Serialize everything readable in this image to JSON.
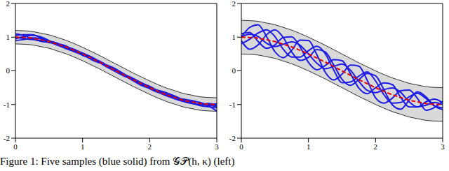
{
  "caption": "Figure 1: Five samples (blue solid) from 𝒢𝒫(h, κ) (left)",
  "chart_data": [
    {
      "type": "line",
      "x": [
        0,
        0.125,
        0.25,
        0.375,
        0.5,
        0.625,
        0.75,
        0.875,
        1,
        1.125,
        1.25,
        1.375,
        1.5,
        1.625,
        1.75,
        1.875,
        2,
        2.125,
        2.25,
        2.375,
        2.5,
        2.625,
        2.75,
        2.875,
        3
      ],
      "xlim": [
        0,
        3
      ],
      "xticks": [
        0,
        1,
        2,
        3
      ],
      "ylim": [
        -2,
        2
      ],
      "yticks": [
        -2,
        -1,
        0,
        1,
        2
      ],
      "series": [
        {
          "type": "area",
          "color": "#d9d9d9",
          "lower": [
            0.8,
            0.79,
            0.77,
            0.72,
            0.67,
            0.59,
            0.51,
            0.41,
            0.3,
            0.18,
            0.06,
            -0.07,
            -0.2,
            -0.33,
            -0.46,
            -0.58,
            -0.7,
            -0.81,
            -0.91,
            -0.99,
            -1.07,
            -1.12,
            -1.17,
            -1.19,
            -1.2
          ],
          "upper": [
            1.2,
            1.19,
            1.17,
            1.12,
            1.07,
            0.99,
            0.91,
            0.81,
            0.7,
            0.58,
            0.46,
            0.33,
            0.2,
            0.07,
            -0.06,
            -0.18,
            -0.3,
            -0.41,
            -0.51,
            -0.59,
            -0.67,
            -0.72,
            -0.77,
            -0.79,
            -0.8
          ]
        },
        {
          "color": "#1a1ae6",
          "line_style": "solid",
          "values": [
            1.05,
            1.07,
            1.07,
            0.98,
            0.87,
            0.76,
            0.71,
            0.64,
            0.5,
            0.34,
            0.24,
            0.16,
            0.05,
            -0.11,
            -0.29,
            -0.43,
            -0.52,
            -0.58,
            -0.65,
            -0.75,
            -0.87,
            -0.96,
            -1.03,
            -1.07,
            -1.1
          ]
        },
        {
          "color": "#1a1ae6",
          "line_style": "solid",
          "values": [
            0.95,
            1.02,
            1.05,
            1.01,
            0.9,
            0.77,
            0.66,
            0.58,
            0.52,
            0.42,
            0.28,
            0.11,
            -0.03,
            -0.16,
            -0.24,
            -0.35,
            -0.48,
            -0.63,
            -0.74,
            -0.8,
            -0.84,
            -0.88,
            -0.95,
            -1.02,
            -1.05
          ]
        },
        {
          "color": "#1a1ae6",
          "line_style": "solid",
          "values": [
            0.9,
            0.93,
            0.98,
            0.95,
            0.85,
            0.81,
            0.74,
            0.6,
            0.46,
            0.37,
            0.29,
            0.15,
            0.01,
            -0.15,
            -0.28,
            -0.36,
            -0.46,
            -0.6,
            -0.73,
            -0.83,
            -0.9,
            -0.9,
            -0.94,
            -1.0,
            -0.98
          ]
        },
        {
          "color": "#1a1ae6",
          "line_style": "solid",
          "values": [
            1.1,
            1.05,
            0.95,
            0.88,
            0.84,
            0.8,
            0.72,
            0.62,
            0.53,
            0.4,
            0.25,
            0.1,
            -0.02,
            -0.12,
            -0.22,
            -0.37,
            -0.53,
            -0.64,
            -0.7,
            -0.76,
            -0.86,
            -0.95,
            -1.0,
            -0.97,
            -1.02
          ]
        },
        {
          "color": "#1a1ae6",
          "line_style": "solid",
          "values": [
            1.0,
            0.96,
            0.93,
            0.9,
            0.88,
            0.82,
            0.69,
            0.57,
            0.48,
            0.39,
            0.27,
            0.12,
            0.02,
            -0.1,
            -0.25,
            -0.4,
            -0.51,
            -0.59,
            -0.69,
            -0.81,
            -0.91,
            -0.97,
            -0.99,
            -1.04,
            -1.2
          ]
        },
        {
          "color": "#e60000",
          "line_style": "dashed",
          "values": [
            1,
            0.99,
            0.97,
            0.92,
            0.87,
            0.79,
            0.71,
            0.61,
            0.5,
            0.38,
            0.26,
            0.13,
            0,
            -0.13,
            -0.26,
            -0.38,
            -0.5,
            -0.61,
            -0.71,
            -0.79,
            -0.87,
            -0.92,
            -0.97,
            -0.99,
            -1
          ]
        }
      ]
    },
    {
      "type": "line",
      "x": [
        0,
        0.125,
        0.25,
        0.375,
        0.5,
        0.625,
        0.75,
        0.875,
        1,
        1.125,
        1.25,
        1.375,
        1.5,
        1.625,
        1.75,
        1.875,
        2,
        2.125,
        2.25,
        2.375,
        2.5,
        2.625,
        2.75,
        2.875,
        3
      ],
      "xlim": [
        0,
        3
      ],
      "xticks": [
        0,
        1,
        2,
        3
      ],
      "ylim": [
        -2,
        2
      ],
      "yticks": [
        -2,
        -1,
        0,
        1,
        2
      ],
      "series": [
        {
          "type": "area",
          "color": "#d9d9d9",
          "lower": [
            0.5,
            0.49,
            0.47,
            0.42,
            0.37,
            0.29,
            0.21,
            0.11,
            0,
            -0.12,
            -0.24,
            -0.37,
            -0.5,
            -0.63,
            -0.76,
            -0.88,
            -1.0,
            -1.11,
            -1.21,
            -1.29,
            -1.37,
            -1.42,
            -1.47,
            -1.49,
            -1.5
          ],
          "upper": [
            1.5,
            1.49,
            1.47,
            1.42,
            1.37,
            1.29,
            1.21,
            1.11,
            1.0,
            0.88,
            0.76,
            0.63,
            0.5,
            0.37,
            0.24,
            0.12,
            0,
            -0.11,
            -0.21,
            -0.29,
            -0.37,
            -0.42,
            -0.47,
            -0.49,
            -0.5
          ]
        },
        {
          "color": "#1a1ae6",
          "line_style": "solid",
          "values": [
            1.0,
            1.29,
            1.37,
            1.02,
            0.57,
            0.39,
            0.61,
            0.91,
            0.9,
            0.48,
            -0.04,
            -0.27,
            -0.1,
            0.17,
            0.14,
            -0.28,
            -0.8,
            -0.96,
            -0.81,
            -0.59,
            -0.57,
            -0.82,
            -1.17,
            -1.09,
            -0.9
          ]
        },
        {
          "color": "#1a1ae6",
          "line_style": "solid",
          "values": [
            0.9,
            0.64,
            0.77,
            1.07,
            1.22,
            0.99,
            0.56,
            0.31,
            0.4,
            0.63,
            0.56,
            0.18,
            -0.25,
            -0.43,
            -0.26,
            -0.08,
            -0.15,
            -0.56,
            -1.01,
            -1.14,
            -0.87,
            -0.62,
            -0.77,
            -1.04,
            -1.15
          ]
        },
        {
          "color": "#1a1ae6",
          "line_style": "solid",
          "values": [
            1.1,
            1.14,
            0.87,
            0.67,
            0.77,
            0.99,
            1.01,
            0.71,
            0.25,
            0.03,
            0.16,
            0.33,
            0.3,
            -0.08,
            -0.51,
            -0.68,
            -0.5,
            -0.36,
            -0.41,
            -0.79,
            -1.07,
            -1.07,
            -0.92,
            -0.84,
            -0.95
          ]
        },
        {
          "color": "#1a1ae6",
          "line_style": "solid",
          "values": [
            0.8,
            0.94,
            1.12,
            1.22,
            1.02,
            0.64,
            0.41,
            0.41,
            0.6,
            0.73,
            0.51,
            0.03,
            -0.35,
            -0.33,
            -0.16,
            -0.03,
            -0.3,
            -0.71,
            -0.96,
            -0.94,
            -0.77,
            -0.67,
            -0.82,
            -1.04,
            -1.1
          ]
        },
        {
          "color": "#1a1ae6",
          "line_style": "solid",
          "values": [
            1.0,
            1.09,
            1.02,
            0.82,
            0.72,
            0.79,
            0.86,
            0.76,
            0.5,
            0.23,
            0.06,
            0.13,
            0.2,
            0.02,
            -0.31,
            -0.58,
            -0.65,
            -0.56,
            -0.51,
            -0.64,
            -0.92,
            -1.07,
            -1.02,
            -0.94,
            -1.0
          ]
        },
        {
          "color": "#e60000",
          "line_style": "dashed",
          "values": [
            1,
            0.99,
            0.97,
            0.92,
            0.87,
            0.79,
            0.71,
            0.61,
            0.5,
            0.38,
            0.26,
            0.13,
            0,
            -0.13,
            -0.26,
            -0.38,
            -0.5,
            -0.61,
            -0.71,
            -0.79,
            -0.87,
            -0.92,
            -0.97,
            -0.99,
            -1
          ]
        }
      ]
    }
  ]
}
